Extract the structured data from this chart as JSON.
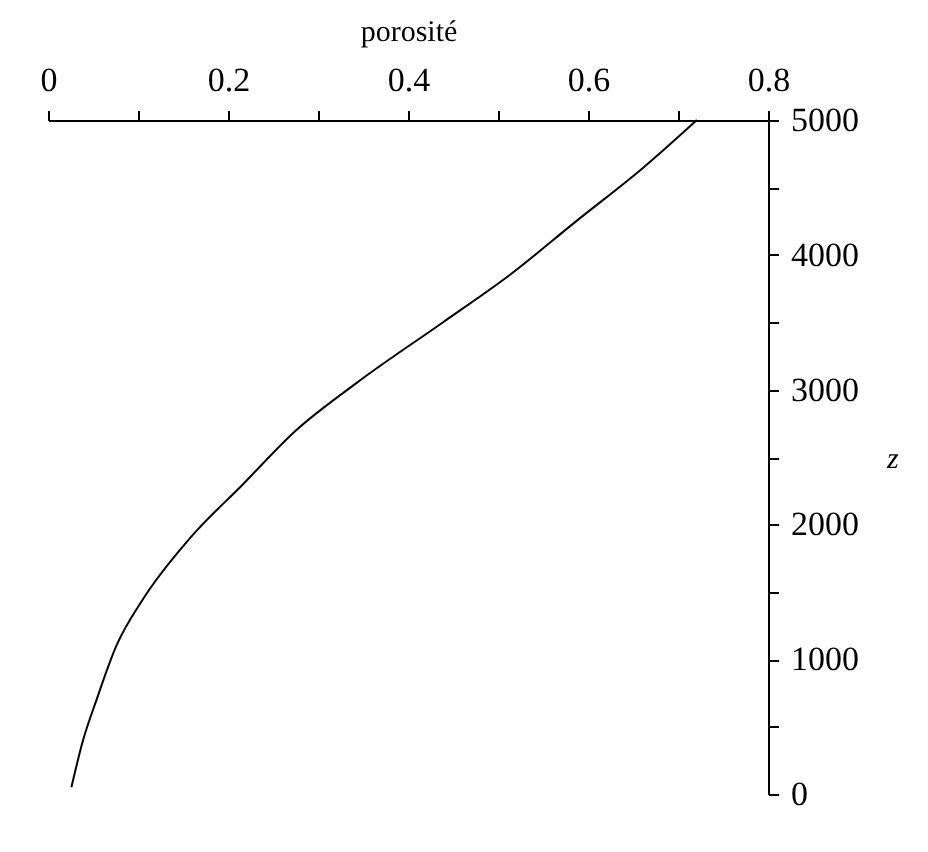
{
  "chart_data": {
    "type": "line",
    "xlabel": "porosité",
    "ylabel": "z",
    "x": [
      0.026,
      0.039,
      0.054,
      0.076,
      0.106,
      0.158,
      0.217,
      0.276,
      0.343,
      0.439,
      0.513,
      0.587,
      0.662,
      0.721
    ],
    "series": [
      {
        "color": "#000000",
        "values": [
          50,
          400,
          700,
          1100,
          1450,
          1900,
          2300,
          2700,
          3050,
          3500,
          3850,
          4250,
          4650,
          5000
        ]
      }
    ],
    "xlim": [
      0,
      0.8
    ],
    "ylim": [
      0,
      5000
    ],
    "xticks": [
      0,
      {
        "value": 0.1,
        "label": null
      },
      0.2,
      {
        "value": 0.3,
        "label": null
      },
      0.4,
      {
        "value": 0.5,
        "label": null
      },
      0.6,
      {
        "value": 0.7,
        "label": null
      },
      0.8
    ],
    "yticks": [
      0,
      {
        "value": 500,
        "label": null
      },
      1000,
      {
        "value": 1500,
        "label": null
      },
      2000,
      {
        "value": 2500,
        "label": null
      },
      3000,
      {
        "value": 3500,
        "label": null
      },
      4000,
      {
        "value": 4500,
        "label": null
      },
      5000
    ],
    "grid": false,
    "marker": "none",
    "line_style": "solid"
  }
}
